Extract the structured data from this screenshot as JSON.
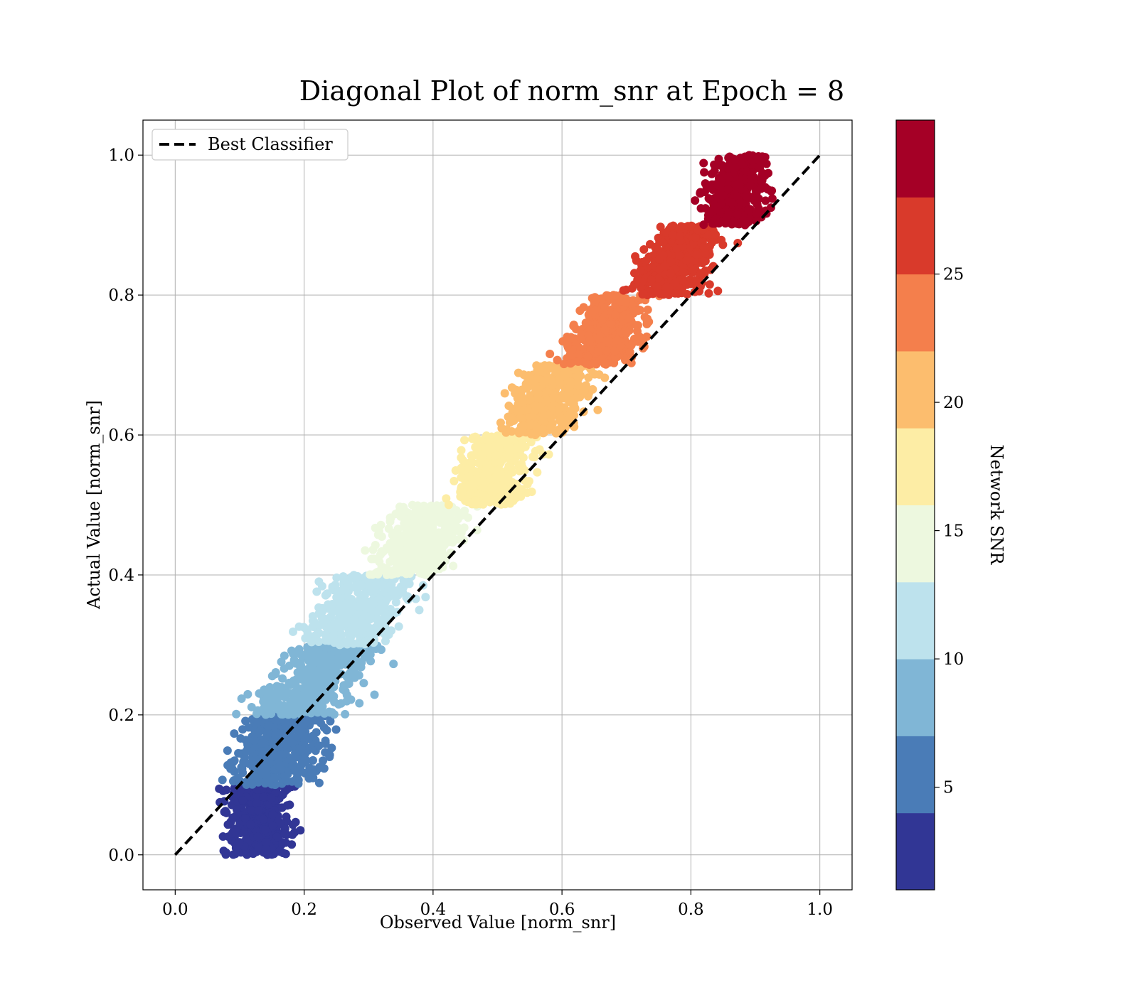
{
  "chart_data": {
    "type": "scatter",
    "title": "Diagonal Plot of norm_snr at Epoch = 8",
    "xlabel": "Observed Value [norm_snr]",
    "ylabel": "Actual Value [norm_snr]",
    "xlim": [
      -0.05,
      1.05
    ],
    "ylim": [
      -0.05,
      1.05
    ],
    "xticks": [
      "0.0",
      "0.2",
      "0.4",
      "0.6",
      "0.8",
      "1.0"
    ],
    "yticks": [
      "0.0",
      "0.2",
      "0.4",
      "0.6",
      "0.8",
      "1.0"
    ],
    "grid": true,
    "legend": {
      "placement": "upper-left",
      "entries": [
        "Best Classifier"
      ]
    },
    "reference_line": {
      "name": "Best Classifier",
      "style": "dashed",
      "color": "#000000",
      "x": [
        0,
        1
      ],
      "y": [
        0,
        1
      ]
    },
    "colorbar": {
      "label": "Network SNR",
      "range": [
        1,
        31
      ],
      "ticks": [
        "5",
        "10",
        "15",
        "20",
        "25"
      ],
      "tick_values": [
        5,
        10,
        15,
        20,
        25
      ],
      "bands": [
        {
          "range": [
            0.0,
            0.1
          ],
          "color": "#313695",
          "x_center_bottom": 0.13,
          "x_center_top": 0.13,
          "spread": 0.08
        },
        {
          "range": [
            0.1,
            0.2
          ],
          "color": "#4a7cb7",
          "x_center_bottom": 0.14,
          "x_center_top": 0.18,
          "spread": 0.11
        },
        {
          "range": [
            0.2,
            0.3
          ],
          "color": "#80b6d6",
          "x_center_bottom": 0.18,
          "x_center_top": 0.26,
          "spread": 0.12
        },
        {
          "range": [
            0.3,
            0.4
          ],
          "color": "#bde2ed",
          "x_center_bottom": 0.26,
          "x_center_top": 0.31,
          "spread": 0.11
        },
        {
          "range": [
            0.4,
            0.5
          ],
          "color": "#edf8df",
          "x_center_bottom": 0.36,
          "x_center_top": 0.4,
          "spread": 0.1
        },
        {
          "range": [
            0.5,
            0.6
          ],
          "color": "#fdeda5",
          "x_center_bottom": 0.48,
          "x_center_top": 0.51,
          "spread": 0.09
        },
        {
          "range": [
            0.6,
            0.7
          ],
          "color": "#fcbd6e",
          "x_center_bottom": 0.56,
          "x_center_top": 0.6,
          "spread": 0.09
        },
        {
          "range": [
            0.7,
            0.8
          ],
          "color": "#f47f4c",
          "x_center_bottom": 0.65,
          "x_center_top": 0.69,
          "spread": 0.09
        },
        {
          "range": [
            0.8,
            0.9
          ],
          "color": "#d93a2b",
          "x_center_bottom": 0.76,
          "x_center_top": 0.8,
          "spread": 0.09
        },
        {
          "range": [
            0.9,
            1.0
          ],
          "color": "#a50026",
          "x_center_bottom": 0.86,
          "x_center_top": 0.88,
          "spread": 0.08
        }
      ]
    },
    "colorbar_colors": [
      "#313695",
      "#4a7cb7",
      "#80b6d6",
      "#bde2ed",
      "#edf8df",
      "#fdeda5",
      "#fcbd6e",
      "#f47f4c",
      "#d93a2b",
      "#a50026"
    ]
  }
}
